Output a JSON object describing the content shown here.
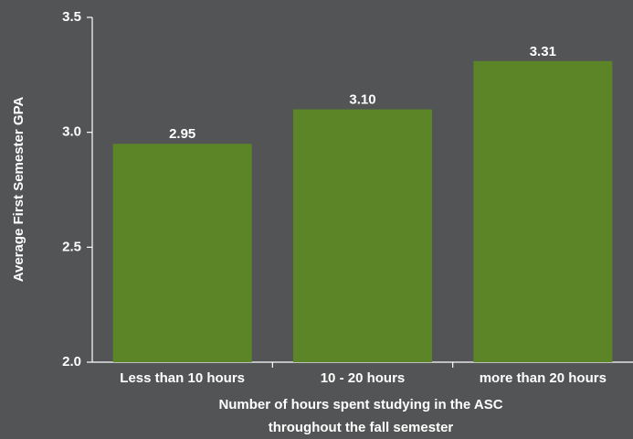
{
  "chart_data": {
    "type": "bar",
    "categories": [
      "Less than 10 hours",
      "10 - 20 hours",
      "more than 20 hours"
    ],
    "values": [
      2.95,
      3.1,
      3.31
    ],
    "data_labels": [
      "2.95",
      "3.10",
      "3.31"
    ],
    "title": "",
    "xlabel_lines": [
      "Number of hours spent studying in the ASC",
      "throughout the fall semester"
    ],
    "ylabel": "Average First Semester GPA",
    "ylim": [
      2.0,
      3.5
    ],
    "yticks": [
      2.0,
      2.5,
      3.0,
      3.5
    ],
    "ytick_labels": [
      "2.0",
      "2.5",
      "3.0",
      "3.5"
    ],
    "grid": false,
    "legend": "none",
    "colors": {
      "bar": "#5b8526",
      "text": "#ffffff",
      "axis": "#ffffff",
      "background": "#525455"
    }
  }
}
